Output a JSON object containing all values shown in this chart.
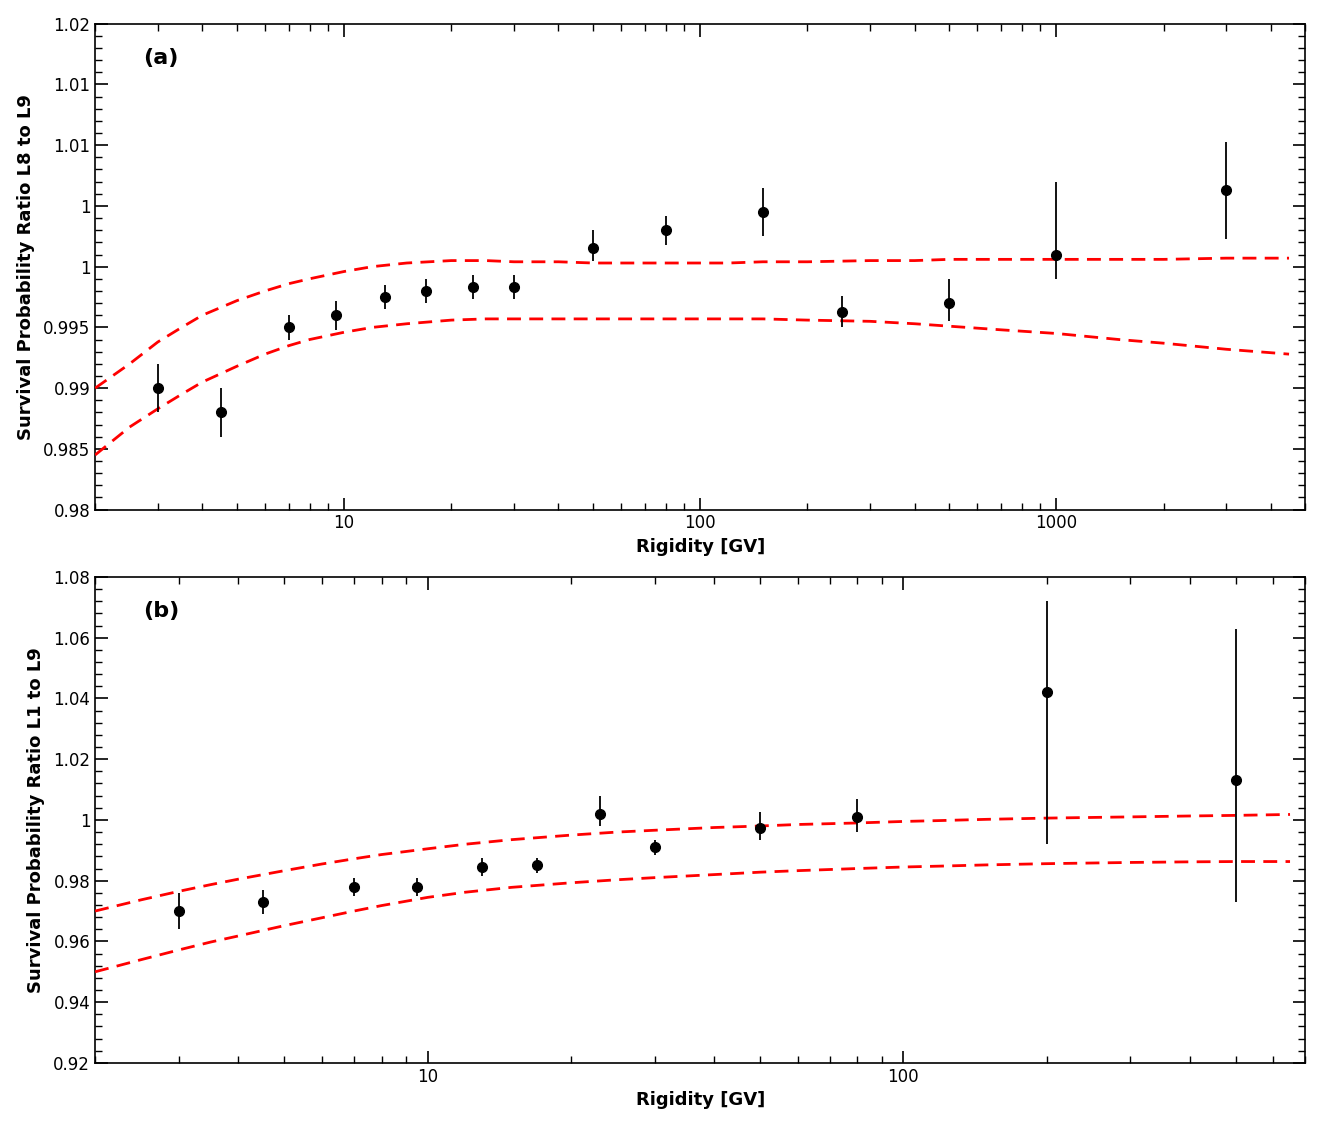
{
  "panel_a": {
    "label": "(a)",
    "ylabel": "Survival Probability Ratio L8 to L9",
    "xlabel": "Rigidity [GV]",
    "xlim": [
      2.0,
      5000.0
    ],
    "ylim": [
      0.98,
      1.02
    ],
    "yticks": [
      0.98,
      0.985,
      0.99,
      0.995,
      1.0,
      1.005,
      1.01,
      1.015,
      1.02
    ],
    "data_x": [
      3.0,
      4.5,
      7.0,
      9.5,
      13.0,
      17.0,
      23.0,
      30.0,
      50.0,
      80.0,
      150.0,
      250.0,
      500.0,
      1000.0,
      3000.0
    ],
    "data_y": [
      0.99,
      0.988,
      0.995,
      0.996,
      0.9975,
      0.998,
      0.9983,
      0.9983,
      1.0015,
      1.003,
      1.0045,
      0.9963,
      0.997,
      1.001,
      1.0063
    ],
    "data_yerr_lo": [
      0.002,
      0.002,
      0.001,
      0.0012,
      0.001,
      0.001,
      0.001,
      0.001,
      0.001,
      0.0012,
      0.002,
      0.0013,
      0.0015,
      0.002,
      0.004
    ],
    "data_yerr_hi": [
      0.002,
      0.002,
      0.001,
      0.0012,
      0.001,
      0.001,
      0.001,
      0.001,
      0.0015,
      0.0012,
      0.002,
      0.0013,
      0.002,
      0.006,
      0.004
    ],
    "curve_x": [
      2.0,
      2.5,
      3.0,
      3.5,
      4.0,
      5.0,
      6.0,
      7.0,
      8.0,
      10.0,
      12.0,
      15.0,
      20.0,
      25.0,
      30.0,
      40.0,
      50.0,
      60.0,
      80.0,
      100.0,
      120.0,
      150.0,
      200.0,
      300.0,
      400.0,
      500.0,
      700.0,
      1000.0,
      1500.0,
      2000.0,
      3000.0,
      4500.0
    ],
    "curve_upper_y": [
      0.99,
      0.992,
      0.9938,
      0.995,
      0.996,
      0.9972,
      0.998,
      0.9986,
      0.999,
      0.9996,
      1.0,
      1.0003,
      1.0005,
      1.0005,
      1.0004,
      1.0004,
      1.0003,
      1.0003,
      1.0003,
      1.0003,
      1.0003,
      1.0004,
      1.0004,
      1.0005,
      1.0005,
      1.0006,
      1.0006,
      1.0006,
      1.0006,
      1.0006,
      1.0007,
      1.0007
    ],
    "curve_lower_y": [
      0.9845,
      0.9868,
      0.9883,
      0.9895,
      0.9905,
      0.9918,
      0.9928,
      0.9935,
      0.994,
      0.9946,
      0.995,
      0.9953,
      0.9956,
      0.9957,
      0.9957,
      0.9957,
      0.9957,
      0.9957,
      0.9957,
      0.9957,
      0.9957,
      0.9957,
      0.9956,
      0.9955,
      0.9953,
      0.9951,
      0.9948,
      0.9945,
      0.994,
      0.9937,
      0.9932,
      0.9928
    ]
  },
  "panel_b": {
    "label": "(b)",
    "ylabel": "Survival Probability Ratio L1 to L9",
    "xlabel": "Rigidity [GV]",
    "xlim": [
      2.0,
      700.0
    ],
    "ylim": [
      0.92,
      1.08
    ],
    "yticks": [
      0.92,
      0.94,
      0.96,
      0.98,
      1.0,
      1.02,
      1.04,
      1.06,
      1.08
    ],
    "data_x": [
      3.0,
      4.5,
      7.0,
      9.5,
      13.0,
      17.0,
      23.0,
      30.0,
      50.0,
      80.0,
      200.0,
      500.0
    ],
    "data_y": [
      0.97,
      0.973,
      0.978,
      0.978,
      0.9845,
      0.985,
      1.002,
      0.991,
      0.9975,
      1.001,
      1.042,
      1.013
    ],
    "data_yerr_lo": [
      0.006,
      0.004,
      0.003,
      0.003,
      0.003,
      0.0025,
      0.004,
      0.0025,
      0.004,
      0.005,
      0.05,
      0.04
    ],
    "data_yerr_hi": [
      0.006,
      0.004,
      0.003,
      0.003,
      0.003,
      0.0025,
      0.006,
      0.0025,
      0.005,
      0.006,
      0.03,
      0.05
    ],
    "curve_x": [
      2.0,
      2.5,
      3.0,
      3.5,
      4.0,
      5.0,
      6.0,
      7.0,
      8.0,
      10.0,
      12.0,
      15.0,
      20.0,
      25.0,
      30.0,
      40.0,
      50.0,
      60.0,
      80.0,
      100.0,
      120.0,
      150.0,
      200.0,
      300.0,
      400.0,
      500.0,
      650.0
    ],
    "curve_upper_y": [
      0.97,
      0.9737,
      0.9765,
      0.9787,
      0.9805,
      0.9833,
      0.9855,
      0.9872,
      0.9886,
      0.9905,
      0.992,
      0.9935,
      0.995,
      0.996,
      0.9966,
      0.9975,
      0.998,
      0.9985,
      0.999,
      0.9995,
      0.9998,
      1.0002,
      1.0006,
      1.001,
      1.0013,
      1.0015,
      1.0018
    ],
    "curve_lower_y": [
      0.95,
      0.954,
      0.9572,
      0.9598,
      0.9618,
      0.9652,
      0.9678,
      0.97,
      0.9718,
      0.9745,
      0.9762,
      0.9778,
      0.9793,
      0.9803,
      0.981,
      0.982,
      0.9828,
      0.9833,
      0.984,
      0.9845,
      0.9848,
      0.9852,
      0.9856,
      0.986,
      0.9862,
      0.9863,
      0.9863
    ]
  },
  "curve_color": "#FF0000",
  "data_color": "#000000",
  "background_color": "#FFFFFF"
}
